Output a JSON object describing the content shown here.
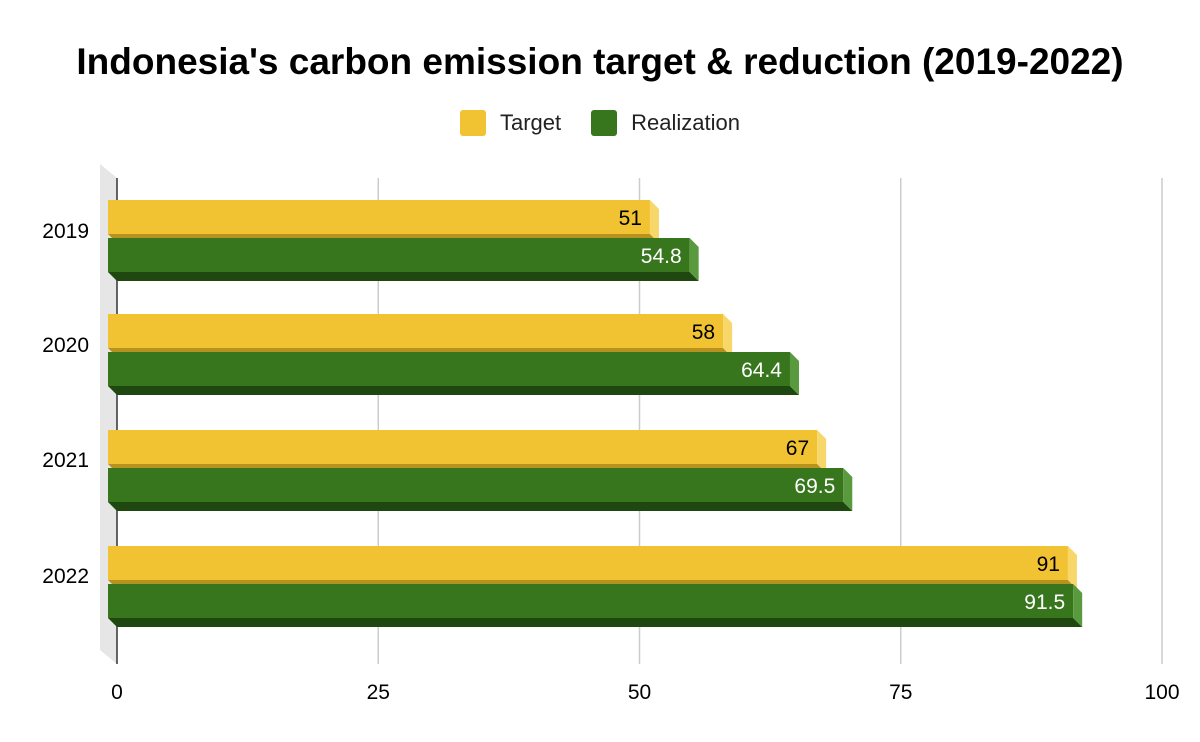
{
  "chart_data": {
    "type": "bar",
    "orientation": "horizontal",
    "title": "Indonesia's carbon emission target & reduction (2019-2022)",
    "categories": [
      "2019",
      "2020",
      "2021",
      "2022"
    ],
    "series": [
      {
        "name": "Target",
        "values": [
          51,
          58,
          67,
          91
        ],
        "labels": [
          "51",
          "58",
          "67",
          "91"
        ],
        "color": "#f1c232",
        "shade": "#b8921f",
        "side": "#f7d66a",
        "label_color": "#000000"
      },
      {
        "name": "Realization",
        "values": [
          54.8,
          64.4,
          69.5,
          91.5
        ],
        "labels": [
          "54.8",
          "64.4",
          "69.5",
          "91.5"
        ],
        "color": "#38761d",
        "shade": "#1f4710",
        "side": "#5a9a3f",
        "label_color": "#ffffff"
      }
    ],
    "xlim": [
      0,
      100
    ],
    "xticks": [
      "0",
      "25",
      "50",
      "75",
      "100"
    ],
    "grid": true,
    "legend_position": "top",
    "xlabel": "",
    "ylabel": ""
  }
}
